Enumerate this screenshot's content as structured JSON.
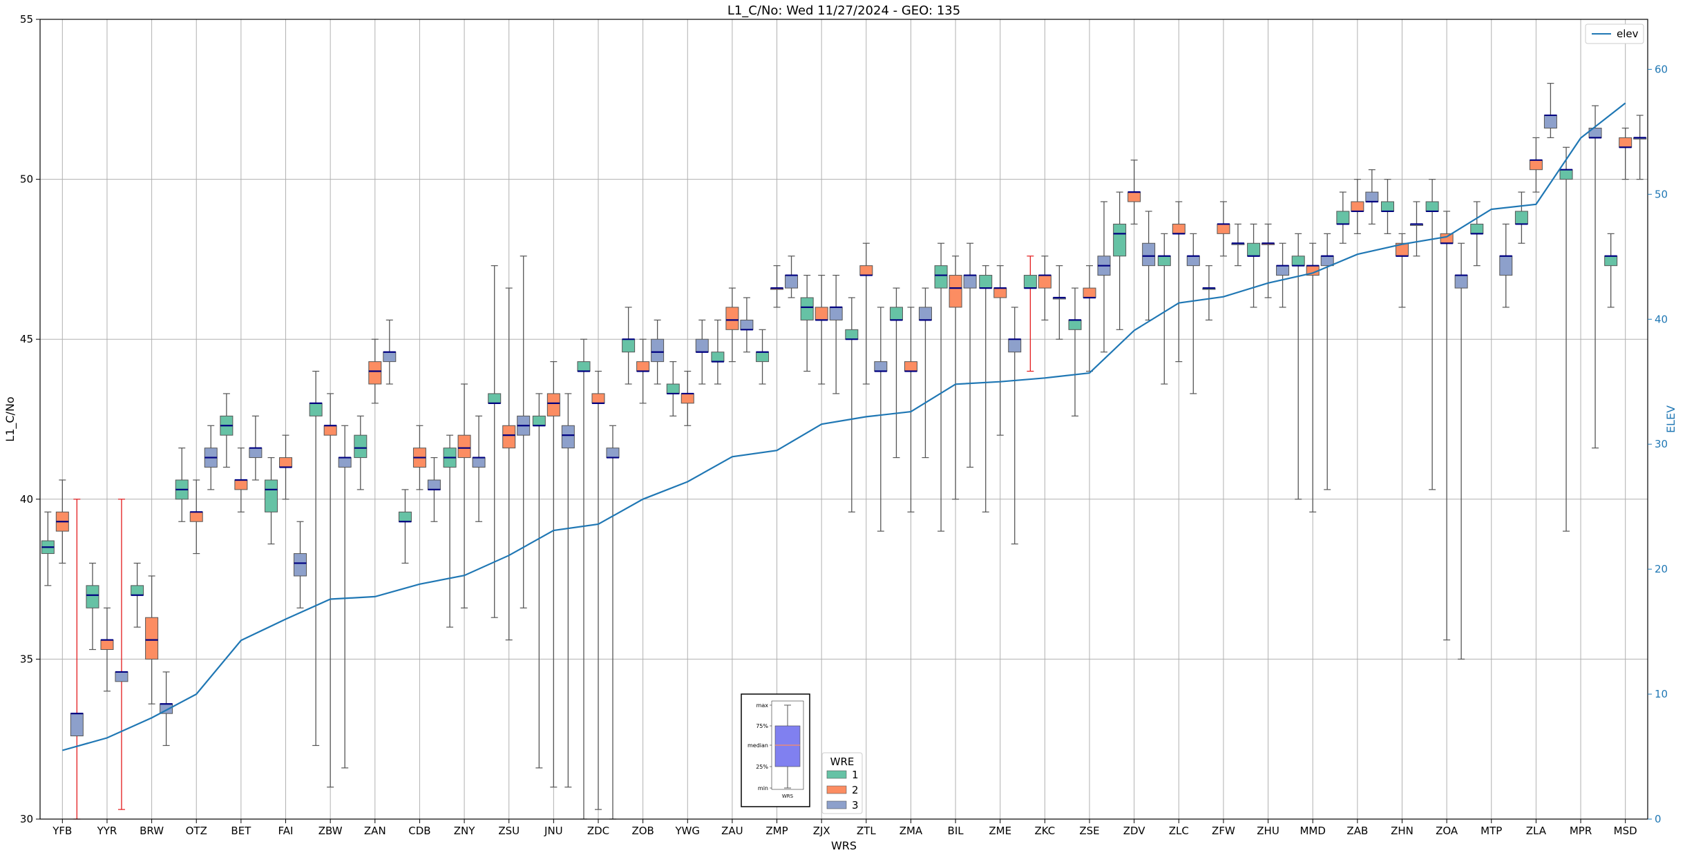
{
  "chart_data": {
    "type": "box",
    "title": "L1_C/No: Wed 11/27/2024 - GEO: 135",
    "xlabel": "WRS",
    "ylabel": "L1_C/No",
    "ylabel_right": "ELEV",
    "ylim": [
      30,
      55
    ],
    "ylim_right": [
      0,
      64
    ],
    "yticks": [
      30,
      35,
      40,
      45,
      50,
      55
    ],
    "yticks_right": [
      0,
      10,
      20,
      30,
      40,
      50,
      60
    ],
    "grid": true,
    "colors": {
      "1": "#66c2a5",
      "2": "#fc8d62",
      "3": "#8da0cb",
      "elev": "#1f77b4",
      "median": "#000080",
      "whisker": "#555555",
      "whisker_alt": "#e31a1c"
    },
    "categories": [
      "YFB",
      "YYR",
      "BRW",
      "OTZ",
      "BET",
      "FAI",
      "ZBW",
      "ZAN",
      "CDB",
      "ZNY",
      "ZSU",
      "JNU",
      "ZDC",
      "ZOB",
      "YWG",
      "ZAU",
      "ZMP",
      "ZJX",
      "ZTL",
      "ZMA",
      "BIL",
      "ZME",
      "ZKC",
      "ZSE",
      "ZDV",
      "ZLC",
      "ZFW",
      "ZHU",
      "MMD",
      "ZAB",
      "ZHN",
      "ZOA",
      "MTP",
      "ZLA",
      "MPR",
      "MSD"
    ],
    "wre_legend": {
      "title": "WRE",
      "entries": [
        "1",
        "2",
        "3"
      ]
    },
    "line_legend": "elev",
    "elev": [
      5.5,
      6.5,
      8.1,
      10.0,
      14.3,
      16.0,
      17.6,
      17.8,
      18.8,
      19.5,
      21.1,
      23.1,
      23.6,
      25.6,
      27.0,
      29.0,
      29.5,
      31.6,
      32.2,
      32.6,
      34.8,
      35.0,
      35.3,
      35.7,
      39.1,
      41.3,
      41.8,
      42.9,
      43.7,
      45.2,
      46.0,
      46.6,
      48.8,
      49.2,
      54.5,
      57.3
    ],
    "boxes": [
      {
        "station": "YFB",
        "wre": 1,
        "min": 37.3,
        "q1": 38.3,
        "median": 38.5,
        "q3": 38.7,
        "max": 39.6
      },
      {
        "station": "YFB",
        "wre": 2,
        "min": 38.0,
        "q1": 39.0,
        "median": 39.3,
        "q3": 39.6,
        "max": 40.6
      },
      {
        "station": "YFB",
        "wre": 3,
        "min": 30.0,
        "q1": 32.6,
        "median": 33.3,
        "q3": 33.3,
        "max": 40.0,
        "alt": true
      },
      {
        "station": "YYR",
        "wre": 1,
        "min": 35.3,
        "q1": 36.6,
        "median": 37.0,
        "q3": 37.3,
        "max": 38.0
      },
      {
        "station": "YYR",
        "wre": 2,
        "min": 34.0,
        "q1": 35.3,
        "median": 35.6,
        "q3": 35.6,
        "max": 36.6
      },
      {
        "station": "YYR",
        "wre": 3,
        "min": 30.3,
        "q1": 34.3,
        "median": 34.6,
        "q3": 34.6,
        "max": 40.0,
        "alt": true
      },
      {
        "station": "BRW",
        "wre": 1,
        "min": 36.0,
        "q1": 37.0,
        "median": 37.0,
        "q3": 37.3,
        "max": 38.0
      },
      {
        "station": "BRW",
        "wre": 2,
        "min": 33.6,
        "q1": 35.0,
        "median": 35.6,
        "q3": 36.3,
        "max": 37.6
      },
      {
        "station": "BRW",
        "wre": 3,
        "min": 32.3,
        "q1": 33.3,
        "median": 33.6,
        "q3": 33.6,
        "max": 34.6
      },
      {
        "station": "OTZ",
        "wre": 1,
        "min": 39.3,
        "q1": 40.0,
        "median": 40.3,
        "q3": 40.6,
        "max": 41.6
      },
      {
        "station": "OTZ",
        "wre": 2,
        "min": 38.3,
        "q1": 39.3,
        "median": 39.6,
        "q3": 39.6,
        "max": 40.6
      },
      {
        "station": "OTZ",
        "wre": 3,
        "min": 40.3,
        "q1": 41.0,
        "median": 41.3,
        "q3": 41.6,
        "max": 42.3
      },
      {
        "station": "BET",
        "wre": 1,
        "min": 41.0,
        "q1": 42.0,
        "median": 42.3,
        "q3": 42.6,
        "max": 43.3
      },
      {
        "station": "BET",
        "wre": 2,
        "min": 39.6,
        "q1": 40.3,
        "median": 40.6,
        "q3": 40.6,
        "max": 41.6
      },
      {
        "station": "BET",
        "wre": 3,
        "min": 40.6,
        "q1": 41.3,
        "median": 41.6,
        "q3": 41.6,
        "max": 42.6
      },
      {
        "station": "FAI",
        "wre": 1,
        "min": 38.6,
        "q1": 39.6,
        "median": 40.3,
        "q3": 40.6,
        "max": 41.3
      },
      {
        "station": "FAI",
        "wre": 2,
        "min": 40.0,
        "q1": 41.0,
        "median": 41.0,
        "q3": 41.3,
        "max": 42.0
      },
      {
        "station": "FAI",
        "wre": 3,
        "min": 36.6,
        "q1": 37.6,
        "median": 38.0,
        "q3": 38.3,
        "max": 39.3
      },
      {
        "station": "ZBW",
        "wre": 1,
        "min": 32.3,
        "q1": 42.6,
        "median": 43.0,
        "q3": 43.0,
        "max": 44.0
      },
      {
        "station": "ZBW",
        "wre": 2,
        "min": 31.0,
        "q1": 42.0,
        "median": 42.3,
        "q3": 42.3,
        "max": 43.3
      },
      {
        "station": "ZBW",
        "wre": 3,
        "min": 31.6,
        "q1": 41.0,
        "median": 41.3,
        "q3": 41.3,
        "max": 42.3
      },
      {
        "station": "ZAN",
        "wre": 1,
        "min": 40.3,
        "q1": 41.3,
        "median": 41.6,
        "q3": 42.0,
        "max": 42.6
      },
      {
        "station": "ZAN",
        "wre": 2,
        "min": 43.0,
        "q1": 43.6,
        "median": 44.0,
        "q3": 44.3,
        "max": 45.0
      },
      {
        "station": "ZAN",
        "wre": 3,
        "min": 43.6,
        "q1": 44.3,
        "median": 44.6,
        "q3": 44.6,
        "max": 45.6
      },
      {
        "station": "CDB",
        "wre": 1,
        "min": 38.0,
        "q1": 39.3,
        "median": 39.3,
        "q3": 39.6,
        "max": 40.3
      },
      {
        "station": "CDB",
        "wre": 2,
        "min": 40.3,
        "q1": 41.0,
        "median": 41.3,
        "q3": 41.6,
        "max": 42.3
      },
      {
        "station": "CDB",
        "wre": 3,
        "min": 39.3,
        "q1": 40.3,
        "median": 40.3,
        "q3": 40.6,
        "max": 41.3
      },
      {
        "station": "ZNY",
        "wre": 1,
        "min": 36.0,
        "q1": 41.0,
        "median": 41.3,
        "q3": 41.6,
        "max": 42.0
      },
      {
        "station": "ZNY",
        "wre": 2,
        "min": 36.6,
        "q1": 41.3,
        "median": 41.6,
        "q3": 42.0,
        "max": 43.6
      },
      {
        "station": "ZNY",
        "wre": 3,
        "min": 39.3,
        "q1": 41.0,
        "median": 41.3,
        "q3": 41.3,
        "max": 42.6
      },
      {
        "station": "ZSU",
        "wre": 1,
        "min": 36.3,
        "q1": 43.0,
        "median": 43.0,
        "q3": 43.3,
        "max": 47.3
      },
      {
        "station": "ZSU",
        "wre": 2,
        "min": 35.6,
        "q1": 41.6,
        "median": 42.0,
        "q3": 42.3,
        "max": 46.6
      },
      {
        "station": "ZSU",
        "wre": 3,
        "min": 36.6,
        "q1": 42.0,
        "median": 42.3,
        "q3": 42.6,
        "max": 47.6
      },
      {
        "station": "JNU",
        "wre": 1,
        "min": 31.6,
        "q1": 42.3,
        "median": 42.3,
        "q3": 42.6,
        "max": 43.3
      },
      {
        "station": "JNU",
        "wre": 2,
        "min": 31.0,
        "q1": 42.6,
        "median": 43.0,
        "q3": 43.3,
        "max": 44.3
      },
      {
        "station": "JNU",
        "wre": 3,
        "min": 31.0,
        "q1": 41.6,
        "median": 42.0,
        "q3": 42.3,
        "max": 43.3
      },
      {
        "station": "ZDC",
        "wre": 1,
        "min": 30.0,
        "q1": 44.0,
        "median": 44.0,
        "q3": 44.3,
        "max": 45.0
      },
      {
        "station": "ZDC",
        "wre": 2,
        "min": 30.3,
        "q1": 43.0,
        "median": 43.0,
        "q3": 43.3,
        "max": 44.0
      },
      {
        "station": "ZDC",
        "wre": 3,
        "min": 30.0,
        "q1": 41.3,
        "median": 41.3,
        "q3": 41.6,
        "max": 42.3
      },
      {
        "station": "ZOB",
        "wre": 1,
        "min": 43.6,
        "q1": 44.6,
        "median": 45.0,
        "q3": 45.0,
        "max": 46.0
      },
      {
        "station": "ZOB",
        "wre": 2,
        "min": 43.0,
        "q1": 44.0,
        "median": 44.0,
        "q3": 44.3,
        "max": 45.0
      },
      {
        "station": "ZOB",
        "wre": 3,
        "min": 43.6,
        "q1": 44.3,
        "median": 44.6,
        "q3": 45.0,
        "max": 45.6
      },
      {
        "station": "YWG",
        "wre": 1,
        "min": 42.6,
        "q1": 43.3,
        "median": 43.3,
        "q3": 43.6,
        "max": 44.3
      },
      {
        "station": "YWG",
        "wre": 2,
        "min": 42.3,
        "q1": 43.0,
        "median": 43.3,
        "q3": 43.3,
        "max": 44.0
      },
      {
        "station": "YWG",
        "wre": 3,
        "min": 43.6,
        "q1": 44.6,
        "median": 44.6,
        "q3": 45.0,
        "max": 45.6
      },
      {
        "station": "ZAU",
        "wre": 1,
        "min": 43.6,
        "q1": 44.3,
        "median": 44.3,
        "q3": 44.6,
        "max": 45.6
      },
      {
        "station": "ZAU",
        "wre": 2,
        "min": 44.3,
        "q1": 45.3,
        "median": 45.6,
        "q3": 46.0,
        "max": 46.6
      },
      {
        "station": "ZAU",
        "wre": 3,
        "min": 44.6,
        "q1": 45.3,
        "median": 45.3,
        "q3": 45.6,
        "max": 46.3
      },
      {
        "station": "ZMP",
        "wre": 1,
        "min": 43.6,
        "q1": 44.3,
        "median": 44.6,
        "q3": 44.6,
        "max": 45.3
      },
      {
        "station": "ZMP",
        "wre": 2,
        "min": 46.0,
        "q1": 46.6,
        "median": 46.6,
        "q3": 46.6,
        "max": 47.3
      },
      {
        "station": "ZMP",
        "wre": 3,
        "min": 46.3,
        "q1": 46.6,
        "median": 47.0,
        "q3": 47.0,
        "max": 47.6
      },
      {
        "station": "ZJX",
        "wre": 1,
        "min": 44.0,
        "q1": 45.6,
        "median": 46.0,
        "q3": 46.3,
        "max": 47.0
      },
      {
        "station": "ZJX",
        "wre": 2,
        "min": 43.6,
        "q1": 45.6,
        "median": 45.6,
        "q3": 46.0,
        "max": 47.0
      },
      {
        "station": "ZJX",
        "wre": 3,
        "min": 43.3,
        "q1": 45.6,
        "median": 46.0,
        "q3": 46.0,
        "max": 47.0
      },
      {
        "station": "ZTL",
        "wre": 1,
        "min": 39.6,
        "q1": 45.0,
        "median": 45.0,
        "q3": 45.3,
        "max": 46.3
      },
      {
        "station": "ZTL",
        "wre": 2,
        "min": 43.6,
        "q1": 47.0,
        "median": 47.0,
        "q3": 47.3,
        "max": 48.0
      },
      {
        "station": "ZTL",
        "wre": 3,
        "min": 39.0,
        "q1": 44.0,
        "median": 44.0,
        "q3": 44.3,
        "max": 46.0
      },
      {
        "station": "ZMA",
        "wre": 1,
        "min": 41.3,
        "q1": 45.6,
        "median": 45.6,
        "q3": 46.0,
        "max": 46.6
      },
      {
        "station": "ZMA",
        "wre": 2,
        "min": 39.6,
        "q1": 44.0,
        "median": 44.0,
        "q3": 44.3,
        "max": 46.0
      },
      {
        "station": "ZMA",
        "wre": 3,
        "min": 41.3,
        "q1": 45.6,
        "median": 45.6,
        "q3": 46.0,
        "max": 46.6
      },
      {
        "station": "BIL",
        "wre": 1,
        "min": 39.0,
        "q1": 46.6,
        "median": 47.0,
        "q3": 47.3,
        "max": 48.0
      },
      {
        "station": "BIL",
        "wre": 2,
        "min": 40.0,
        "q1": 46.0,
        "median": 46.6,
        "q3": 47.0,
        "max": 47.6
      },
      {
        "station": "BIL",
        "wre": 3,
        "min": 41.0,
        "q1": 46.6,
        "median": 47.0,
        "q3": 47.0,
        "max": 48.0
      },
      {
        "station": "ZME",
        "wre": 1,
        "min": 39.6,
        "q1": 46.6,
        "median": 46.6,
        "q3": 47.0,
        "max": 47.3
      },
      {
        "station": "ZME",
        "wre": 2,
        "min": 42.0,
        "q1": 46.3,
        "median": 46.6,
        "q3": 46.6,
        "max": 47.3
      },
      {
        "station": "ZME",
        "wre": 3,
        "min": 38.6,
        "q1": 44.6,
        "median": 45.0,
        "q3": 45.0,
        "max": 46.0
      },
      {
        "station": "ZKC",
        "wre": 1,
        "min": 44.0,
        "q1": 46.6,
        "median": 46.6,
        "q3": 47.0,
        "max": 47.6,
        "alt": true
      },
      {
        "station": "ZKC",
        "wre": 2,
        "min": 45.6,
        "q1": 46.6,
        "median": 47.0,
        "q3": 47.0,
        "max": 47.6
      },
      {
        "station": "ZKC",
        "wre": 3,
        "min": 45.0,
        "q1": 46.3,
        "median": 46.3,
        "q3": 46.3,
        "max": 47.3
      },
      {
        "station": "ZSE",
        "wre": 1,
        "min": 42.6,
        "q1": 45.3,
        "median": 45.6,
        "q3": 45.6,
        "max": 46.6
      },
      {
        "station": "ZSE",
        "wre": 2,
        "min": 44.0,
        "q1": 46.3,
        "median": 46.3,
        "q3": 46.6,
        "max": 47.3
      },
      {
        "station": "ZSE",
        "wre": 3,
        "min": 44.6,
        "q1": 47.0,
        "median": 47.3,
        "q3": 47.6,
        "max": 49.3
      },
      {
        "station": "ZDV",
        "wre": 1,
        "min": 45.3,
        "q1": 47.6,
        "median": 48.3,
        "q3": 48.6,
        "max": 49.6
      },
      {
        "station": "ZDV",
        "wre": 2,
        "min": 48.6,
        "q1": 49.3,
        "median": 49.6,
        "q3": 49.6,
        "max": 50.6
      },
      {
        "station": "ZDV",
        "wre": 3,
        "min": 45.6,
        "q1": 47.3,
        "median": 47.6,
        "q3": 48.0,
        "max": 49.0
      },
      {
        "station": "ZLC",
        "wre": 1,
        "min": 43.6,
        "q1": 47.3,
        "median": 47.6,
        "q3": 47.6,
        "max": 48.3
      },
      {
        "station": "ZLC",
        "wre": 2,
        "min": 44.3,
        "q1": 48.3,
        "median": 48.3,
        "q3": 48.6,
        "max": 49.3
      },
      {
        "station": "ZLC",
        "wre": 3,
        "min": 43.3,
        "q1": 47.3,
        "median": 47.6,
        "q3": 47.6,
        "max": 48.3
      },
      {
        "station": "ZFW",
        "wre": 1,
        "min": 45.6,
        "q1": 46.6,
        "median": 46.6,
        "q3": 46.6,
        "max": 47.3
      },
      {
        "station": "ZFW",
        "wre": 2,
        "min": 47.6,
        "q1": 48.3,
        "median": 48.6,
        "q3": 48.6,
        "max": 49.3
      },
      {
        "station": "ZFW",
        "wre": 3,
        "min": 47.3,
        "q1": 48.0,
        "median": 48.0,
        "q3": 48.0,
        "max": 48.6
      },
      {
        "station": "ZHU",
        "wre": 1,
        "min": 46.0,
        "q1": 47.6,
        "median": 47.6,
        "q3": 48.0,
        "max": 48.6
      },
      {
        "station": "ZHU",
        "wre": 2,
        "min": 46.3,
        "q1": 48.0,
        "median": 48.0,
        "q3": 48.0,
        "max": 48.6
      },
      {
        "station": "ZHU",
        "wre": 3,
        "min": 46.0,
        "q1": 47.0,
        "median": 47.3,
        "q3": 47.3,
        "max": 48.0
      },
      {
        "station": "MMD",
        "wre": 1,
        "min": 40.0,
        "q1": 47.3,
        "median": 47.3,
        "q3": 47.6,
        "max": 48.3
      },
      {
        "station": "MMD",
        "wre": 2,
        "min": 39.6,
        "q1": 47.0,
        "median": 47.3,
        "q3": 47.3,
        "max": 48.0
      },
      {
        "station": "MMD",
        "wre": 3,
        "min": 40.3,
        "q1": 47.3,
        "median": 47.6,
        "q3": 47.6,
        "max": 48.3
      },
      {
        "station": "ZAB",
        "wre": 1,
        "min": 48.0,
        "q1": 48.6,
        "median": 48.6,
        "q3": 49.0,
        "max": 49.6
      },
      {
        "station": "ZAB",
        "wre": 2,
        "min": 48.3,
        "q1": 49.0,
        "median": 49.0,
        "q3": 49.3,
        "max": 50.0
      },
      {
        "station": "ZAB",
        "wre": 3,
        "min": 48.6,
        "q1": 49.3,
        "median": 49.3,
        "q3": 49.6,
        "max": 50.3
      },
      {
        "station": "ZHN",
        "wre": 1,
        "min": 48.3,
        "q1": 49.0,
        "median": 49.0,
        "q3": 49.3,
        "max": 50.0
      },
      {
        "station": "ZHN",
        "wre": 2,
        "min": 46.0,
        "q1": 47.6,
        "median": 47.6,
        "q3": 48.0,
        "max": 48.3
      },
      {
        "station": "ZHN",
        "wre": 3,
        "min": 47.6,
        "q1": 48.6,
        "median": 48.6,
        "q3": 48.6,
        "max": 49.3
      },
      {
        "station": "ZOA",
        "wre": 1,
        "min": 40.3,
        "q1": 49.0,
        "median": 49.0,
        "q3": 49.3,
        "max": 50.0
      },
      {
        "station": "ZOA",
        "wre": 2,
        "min": 35.6,
        "q1": 48.0,
        "median": 48.0,
        "q3": 48.3,
        "max": 49.0
      },
      {
        "station": "ZOA",
        "wre": 3,
        "min": 35.0,
        "q1": 46.6,
        "median": 47.0,
        "q3": 47.0,
        "max": 48.0
      },
      {
        "station": "MTP",
        "wre": 1,
        "min": 47.3,
        "q1": 48.3,
        "median": 48.3,
        "q3": 48.6,
        "max": 49.3
      },
      {
        "station": "MTP",
        "wre": 3,
        "min": 46.0,
        "q1": 47.0,
        "median": 47.6,
        "q3": 47.6,
        "max": 48.6
      },
      {
        "station": "ZLA",
        "wre": 1,
        "min": 48.0,
        "q1": 48.6,
        "median": 48.6,
        "q3": 49.0,
        "max": 49.6
      },
      {
        "station": "ZLA",
        "wre": 2,
        "min": 49.6,
        "q1": 50.3,
        "median": 50.6,
        "q3": 50.6,
        "max": 51.3
      },
      {
        "station": "ZLA",
        "wre": 3,
        "min": 51.3,
        "q1": 51.6,
        "median": 52.0,
        "q3": 52.0,
        "max": 53.0
      },
      {
        "station": "MPR",
        "wre": 1,
        "min": 39.0,
        "q1": 50.0,
        "median": 50.3,
        "q3": 50.3,
        "max": 51.0
      },
      {
        "station": "MPR",
        "wre": 3,
        "min": 41.6,
        "q1": 51.3,
        "median": 51.3,
        "q3": 51.6,
        "max": 52.3
      },
      {
        "station": "MSD",
        "wre": 1,
        "min": 46.0,
        "q1": 47.3,
        "median": 47.6,
        "q3": 47.6,
        "max": 48.3
      },
      {
        "station": "MSD",
        "wre": 2,
        "min": 50.0,
        "q1": 51.0,
        "median": 51.0,
        "q3": 51.3,
        "max": 51.6
      },
      {
        "station": "MSD",
        "wre": 3,
        "min": 50.0,
        "q1": 51.3,
        "median": 51.3,
        "q3": 51.3,
        "max": 52.0
      }
    ],
    "inset": {
      "labels": [
        "max",
        "75%",
        "median",
        "25%",
        "min"
      ],
      "xtick": "WRS",
      "box_color": "#8080f0",
      "median_color": "#fc8d62"
    }
  }
}
